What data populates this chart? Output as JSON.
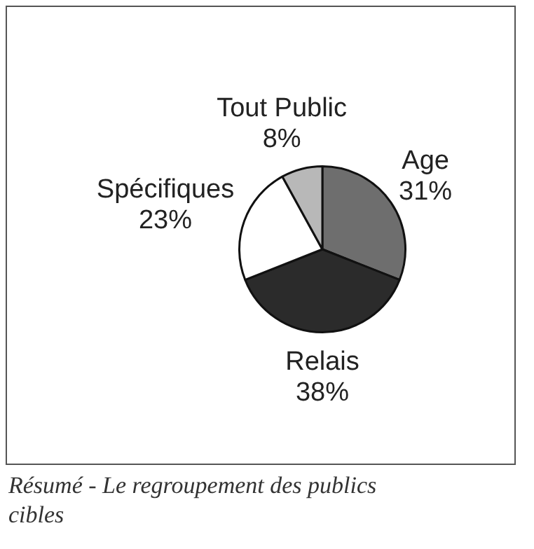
{
  "chart_data": {
    "type": "pie",
    "categories": [
      "Age",
      "Relais",
      "Spécifiques",
      "Tout Public"
    ],
    "values": [
      31,
      38,
      23,
      8
    ],
    "colors": [
      "#6e6e6e",
      "#2b2b2b",
      "#ffffff",
      "#b8b8b8"
    ],
    "value_labels": [
      "31%",
      "38%",
      "23%",
      "8%"
    ],
    "annotations": [
      "Résumé - Le regroupement des publics cibles"
    ]
  }
}
